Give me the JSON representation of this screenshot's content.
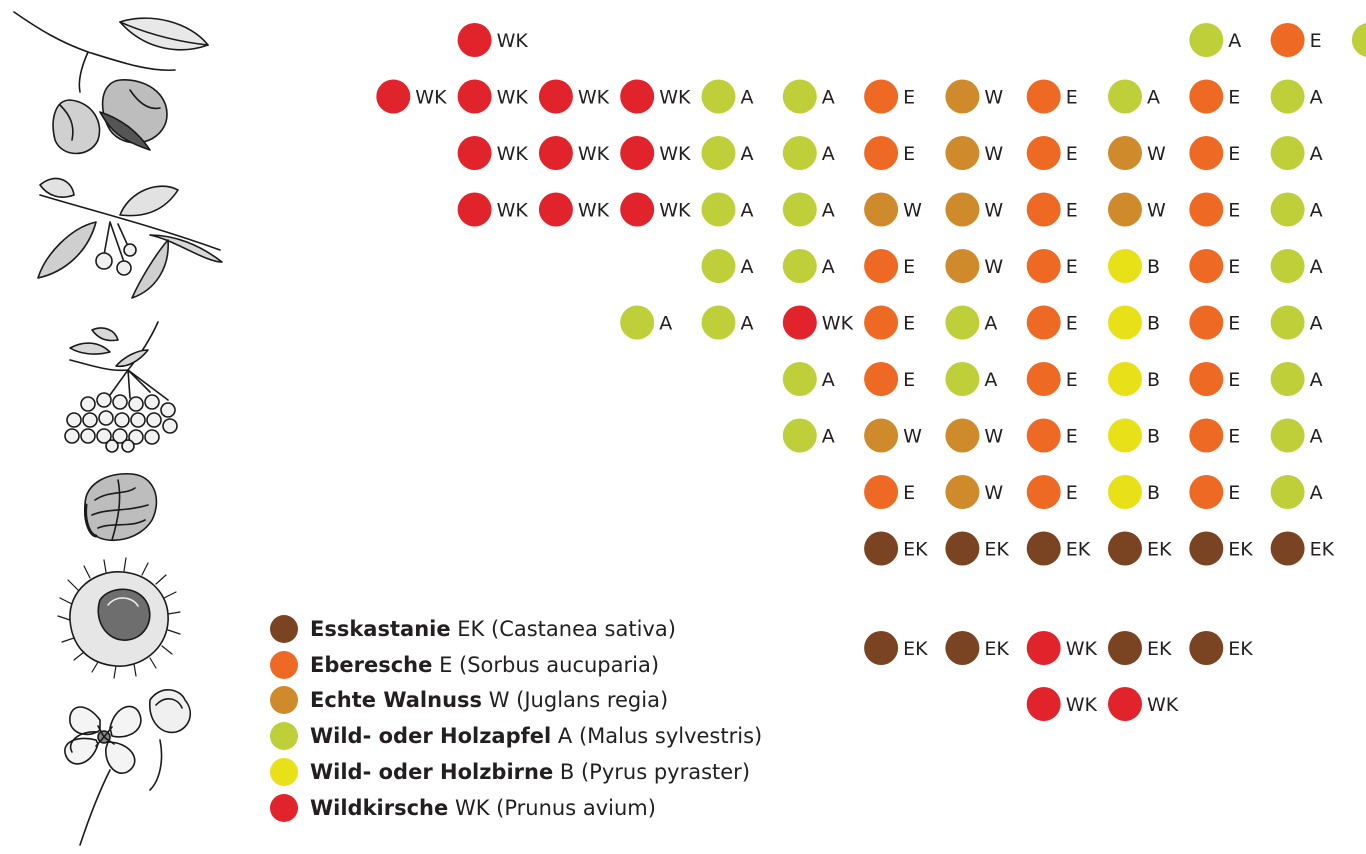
{
  "legend": [
    {
      "key": "EK",
      "name": "Esskastanie",
      "latin": "(Castanea sativa)",
      "color": "#7a4322"
    },
    {
      "key": "E",
      "name": "Eberesche",
      "latin": "(Sorbus aucuparia)",
      "color": "#ee6a24"
    },
    {
      "key": "W",
      "name": "Echte Walnuss",
      "latin": "(Juglans regia)",
      "color": "#cf8a2b"
    },
    {
      "key": "A",
      "name": "Wild- oder Holzapfel",
      "latin": "(Malus sylvestris)",
      "color": "#bfcf3a"
    },
    {
      "key": "B",
      "name": "Wild- oder Holzbirne",
      "latin": "(Pyrus pyraster)",
      "color": "#e9e117"
    },
    {
      "key": "WK",
      "name": "Wildkirsche",
      "latin": "(Prunus avium)",
      "color": "#e1232b"
    }
  ],
  "planting_rows": [
    [
      "",
      "",
      "WK",
      "",
      "",
      "",
      "",
      "",
      "",
      "",
      "",
      "A",
      "E",
      "A"
    ],
    [
      "",
      "WK",
      "WK",
      "WK",
      "WK",
      "A",
      "A",
      "E",
      "W",
      "E",
      "A",
      "E",
      "A"
    ],
    [
      "",
      "",
      "WK",
      "WK",
      "WK",
      "A",
      "A",
      "E",
      "W",
      "E",
      "W",
      "E",
      "A"
    ],
    [
      "",
      "",
      "WK",
      "WK",
      "WK",
      "A",
      "A",
      "W",
      "W",
      "E",
      "W",
      "E",
      "A"
    ],
    [
      "",
      "",
      "",
      "",
      "",
      "A",
      "A",
      "E",
      "W",
      "E",
      "B",
      "E",
      "A"
    ],
    [
      "",
      "",
      "",
      "",
      "A",
      "A",
      "WK",
      "E",
      "A",
      "E",
      "B",
      "E",
      "A"
    ],
    [
      "",
      "",
      "",
      "",
      "",
      "",
      "A",
      "E",
      "A",
      "E",
      "B",
      "E",
      "A"
    ],
    [
      "",
      "",
      "",
      "",
      "",
      "",
      "A",
      "W",
      "W",
      "E",
      "B",
      "E",
      "A"
    ],
    [
      "",
      "",
      "",
      "",
      "",
      "",
      "",
      "E",
      "W",
      "E",
      "B",
      "E",
      "A"
    ],
    [
      "",
      "",
      "",
      "",
      "",
      "",
      "",
      "EK",
      "EK",
      "EK",
      "EK",
      "EK",
      "EK"
    ],
    [
      "",
      "",
      "",
      "",
      "",
      "",
      "",
      "EK",
      "EK",
      "WK",
      "EK",
      "EK",
      ""
    ],
    [
      "",
      "",
      "",
      "",
      "",
      "",
      "",
      "",
      "",
      "WK",
      "WK",
      "",
      ""
    ]
  ]
}
